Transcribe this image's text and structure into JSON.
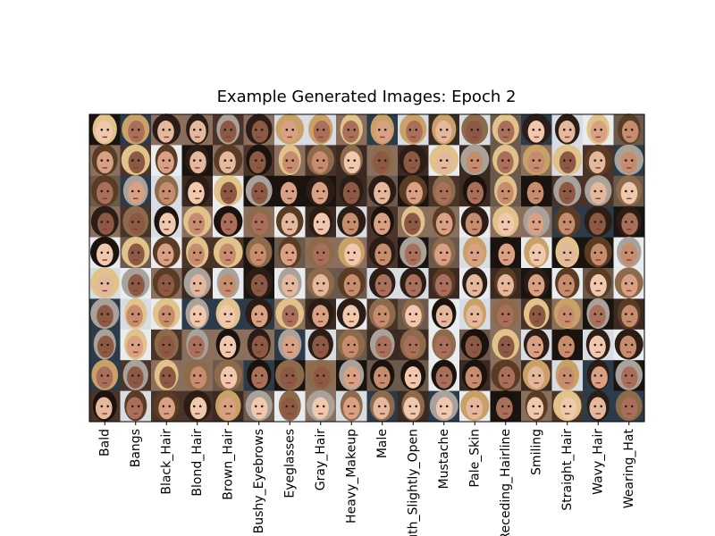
{
  "title": "Example Generated Images: Epoch 2",
  "columns": [
    "Bald",
    "Bangs",
    "Black_Hair",
    "Blond_Hair",
    "Brown_Hair",
    "Bushy_Eyebrows",
    "Eyeglasses",
    "Gray_Hair",
    "Heavy_Makeup",
    "Male",
    "Mouth_Slightly_Open",
    "Mustache",
    "Pale_Skin",
    "Receding_Hairline",
    "Smiling",
    "Straight_Hair",
    "Wavy_Hair",
    "Wearing_Hat"
  ]
}
